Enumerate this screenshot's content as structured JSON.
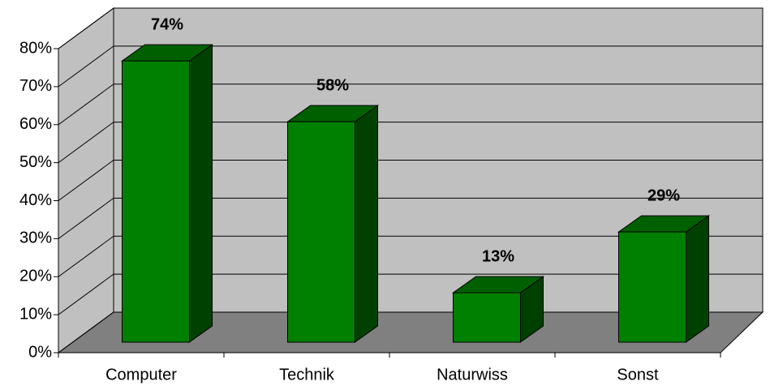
{
  "chart_data": {
    "type": "bar3d",
    "categories": [
      "Computer",
      "Technik",
      "Naturwiss",
      "Sonst"
    ],
    "values": [
      74,
      58,
      13,
      29
    ],
    "value_labels": [
      "74%",
      "58%",
      "13%",
      "29%"
    ],
    "color": "#008000",
    "ylim": [
      0,
      80
    ],
    "yticks": [
      {
        "value": 0,
        "label": "0%"
      },
      {
        "value": 10,
        "label": "10%"
      },
      {
        "value": 20,
        "label": "20%"
      },
      {
        "value": 30,
        "label": "30%"
      },
      {
        "value": 40,
        "label": "40%"
      },
      {
        "value": 50,
        "label": "50%"
      },
      {
        "value": 60,
        "label": "60%"
      },
      {
        "value": 70,
        "label": "70%"
      },
      {
        "value": 80,
        "label": "80%"
      }
    ],
    "grid": true
  }
}
